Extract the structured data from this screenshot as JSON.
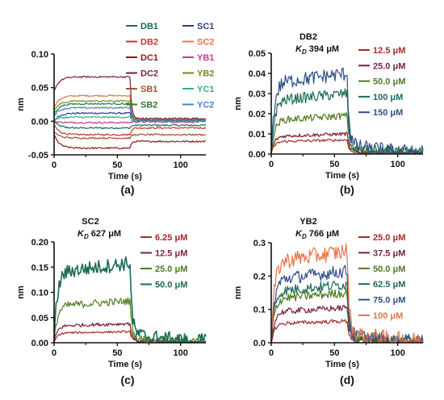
{
  "chart_data": [
    {
      "type": "line",
      "panel": "(a)",
      "xlabel": "Time (s)",
      "ylabel": "nm",
      "xlim": [
        0,
        120
      ],
      "ylim": [
        -0.05,
        0.1
      ],
      "x_ticks": [
        0,
        50,
        100
      ],
      "y_ticks": [
        -0.05,
        0.0,
        0.05,
        0.1
      ],
      "y_tick_labels": [
        "-0.05",
        "0.00",
        "0.05",
        "0.10"
      ],
      "legend_position": "top-right",
      "association_end": 60,
      "series": [
        {
          "name": "DB1",
          "color": "#1a6b55",
          "plateau": -0.01,
          "start": 0.0,
          "tail": -0.006
        },
        {
          "name": "SC1",
          "color": "#2e3f7a",
          "plateau": 0.012,
          "start": 0.0,
          "tail": 0.002
        },
        {
          "name": "DB2",
          "color": "#c0392b",
          "plateau": -0.02,
          "start": -0.005,
          "tail": -0.01
        },
        {
          "name": "SC2",
          "color": "#e8734a",
          "plateau": 0.038,
          "start": 0.02,
          "tail": 0.003
        },
        {
          "name": "DC1",
          "color": "#8b1a1a",
          "plateau": -0.04,
          "start": -0.02,
          "tail": -0.03
        },
        {
          "name": "YB1",
          "color": "#c23b8e",
          "plateau": -0.002,
          "start": 0.0,
          "tail": -0.001
        },
        {
          "name": "DC2",
          "color": "#7a1f3d",
          "plateau": 0.066,
          "start": 0.045,
          "tail": 0.004
        },
        {
          "name": "YB2",
          "color": "#6b8e23",
          "plateau": 0.03,
          "start": 0.015,
          "tail": 0.002
        },
        {
          "name": "SB1",
          "color": "#a0522d",
          "plateau": -0.025,
          "start": -0.015,
          "tail": -0.02
        },
        {
          "name": "YC1",
          "color": "#2bb08a",
          "plateau": 0.006,
          "start": 0.002,
          "tail": 0.0
        },
        {
          "name": "SB2",
          "color": "#2e7d32",
          "plateau": 0.026,
          "start": 0.01,
          "tail": 0.001
        },
        {
          "name": "YC2",
          "color": "#4a7fd6",
          "plateau": 0.02,
          "start": 0.008,
          "tail": 0.001
        }
      ]
    },
    {
      "type": "line",
      "panel": "(b)",
      "title": "DB2",
      "kd_value": "394 μM",
      "xlabel": "Time (s)",
      "ylabel": "nm",
      "xlim": [
        0,
        120
      ],
      "ylim": [
        0,
        0.05
      ],
      "x_ticks": [
        0,
        50,
        100
      ],
      "y_ticks": [
        0.0,
        0.01,
        0.02,
        0.03,
        0.04,
        0.05
      ],
      "y_tick_labels": [
        "0.00",
        "0.01",
        "0.02",
        "0.03",
        "0.04",
        "0.05"
      ],
      "legend_position": "right",
      "association_end": 60,
      "series": [
        {
          "name": "12.5 μM",
          "color": "#a52a2a",
          "plateau": 0.007
        },
        {
          "name": "25.0 μM",
          "color": "#7a1f3d",
          "plateau": 0.01
        },
        {
          "name": "50.0 μM",
          "color": "#4e7a1f",
          "plateau": 0.019
        },
        {
          "name": "100 μM",
          "color": "#1a6b55",
          "plateau": 0.03
        },
        {
          "name": "150 μM",
          "color": "#2e4f8a",
          "plateau": 0.04
        }
      ]
    },
    {
      "type": "line",
      "panel": "(c)",
      "title": "SC2",
      "kd_value": "627 μM",
      "xlabel": "Time (s)",
      "ylabel": "nm",
      "xlim": [
        0,
        120
      ],
      "ylim": [
        0,
        0.2
      ],
      "x_ticks": [
        0,
        50,
        100
      ],
      "y_ticks": [
        0.0,
        0.05,
        0.1,
        0.15,
        0.2
      ],
      "y_tick_labels": [
        "0.00",
        "0.05",
        "0.10",
        "0.15",
        "0.20"
      ],
      "legend_position": "right",
      "association_end": 60,
      "series": [
        {
          "name": "6.25 μM",
          "color": "#a52a2a",
          "plateau": 0.022
        },
        {
          "name": "12.5 μM",
          "color": "#7a1f3d",
          "plateau": 0.038
        },
        {
          "name": "25.0 μM",
          "color": "#4e7a1f",
          "plateau": 0.083
        },
        {
          "name": "50.0 μM",
          "color": "#1a6b55",
          "plateau": 0.158
        }
      ]
    },
    {
      "type": "line",
      "panel": "(d)",
      "title": "YB2",
      "kd_value": "766 μM",
      "xlabel": "Time (s)",
      "ylabel": "nm",
      "xlim": [
        0,
        120
      ],
      "ylim": [
        0,
        0.3
      ],
      "x_ticks": [
        0,
        50,
        100
      ],
      "y_ticks": [
        0.0,
        0.1,
        0.2,
        0.3
      ],
      "y_tick_labels": [
        "0.0",
        "0.1",
        "0.2",
        "0.3"
      ],
      "legend_position": "right",
      "association_end": 60,
      "series": [
        {
          "name": "25.0 μM",
          "color": "#a52a2a",
          "plateau": 0.065
        },
        {
          "name": "37.5 μM",
          "color": "#7a1f3d",
          "plateau": 0.105
        },
        {
          "name": "50.0 μM",
          "color": "#4e7a1f",
          "plateau": 0.15
        },
        {
          "name": "62.5 μM",
          "color": "#1a6b55",
          "plateau": 0.175
        },
        {
          "name": "75.0 μM",
          "color": "#2e4f8a",
          "plateau": 0.215
        },
        {
          "name": "100 μM",
          "color": "#e8734a",
          "plateau": 0.275
        }
      ]
    }
  ]
}
